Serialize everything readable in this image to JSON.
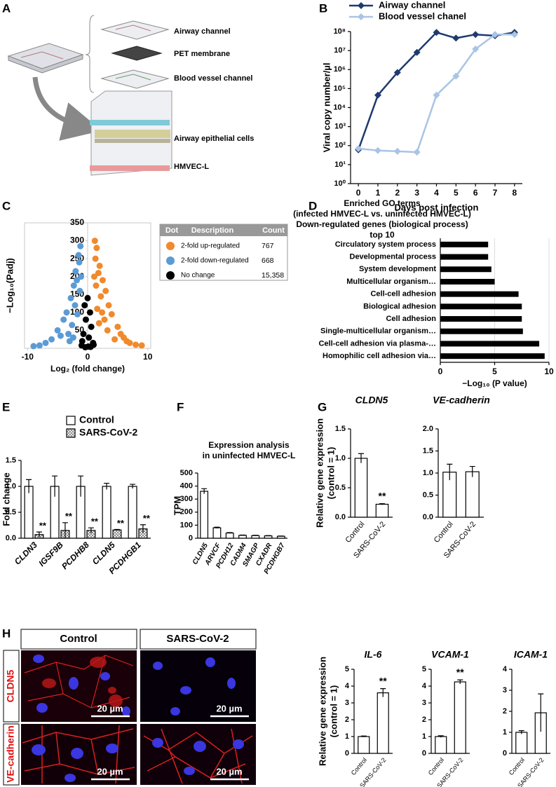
{
  "panel_labels": [
    "A",
    "B",
    "C",
    "D",
    "E",
    "F",
    "G",
    "H"
  ],
  "diagram": {
    "labels": [
      "Airway channel",
      "PET membrane",
      "Blood vessel channel",
      "Airway epithelial cells",
      "HMVEC-L"
    ]
  },
  "chart_data": [
    {
      "type": "line",
      "x": [
        0,
        1,
        2,
        3,
        4,
        5,
        6,
        7,
        8
      ],
      "series": [
        {
          "name": "Airway channel",
          "color": "#1f3a6e",
          "values": [
            60,
            45000,
            700000,
            8000000,
            90000000,
            45000000,
            70000000,
            60000000,
            90000000
          ]
        },
        {
          "name": "Blood vessel chanel",
          "color": "#a9c4e4",
          "values": [
            70,
            55,
            50,
            45,
            45000,
            450000,
            12000000,
            70000000,
            70000000
          ]
        }
      ],
      "xlim": [
        -0.4,
        8.4
      ],
      "xticks": [
        0,
        1,
        2,
        3,
        4,
        5,
        6,
        7,
        8
      ],
      "ylim": [
        1,
        100000000
      ],
      "log_y": true,
      "yticks": [
        {
          "value": 1,
          "label": "10⁰"
        },
        {
          "value": 10,
          "label": "10¹"
        },
        {
          "value": 100,
          "label": "10²"
        },
        {
          "value": 1000,
          "label": "10³"
        },
        {
          "value": 10000,
          "label": "10⁴"
        },
        {
          "value": 100000,
          "label": "10⁵"
        },
        {
          "value": 1000000,
          "label": "10⁶"
        },
        {
          "value": 10000000,
          "label": "10⁷"
        },
        {
          "value": 100000000,
          "label": "10⁸"
        }
      ],
      "xlabel": "Days post infection",
      "ylabel": "Viral copy number/µl"
    },
    {
      "type": "scatter",
      "series": [
        {
          "name": "2-fold up-regulated",
          "color": "#f08a2c",
          "x": [
            1.2,
            1.5,
            1.3,
            2,
            1.8,
            2.5,
            1.4,
            3,
            2.2,
            3.5,
            1.6,
            4,
            2.8,
            5,
            3.3,
            6,
            4.5,
            7,
            8,
            9,
            1.1,
            2.4,
            1.9,
            5.5,
            6.5
          ],
          "values": [
            300,
            280,
            250,
            230,
            210,
            190,
            175,
            160,
            145,
            120,
            110,
            95,
            80,
            60,
            50,
            30,
            25,
            15,
            10,
            8,
            200,
            100,
            70,
            40,
            20
          ]
        },
        {
          "name": "2-fold down-regulated",
          "color": "#5b9bd5",
          "x": [
            -1.2,
            -1.5,
            -1.4,
            -2,
            -1.8,
            -2.3,
            -1.3,
            -2.8,
            -2.1,
            -3.5,
            -1.7,
            -4,
            -2.6,
            -5,
            -3.2,
            -6,
            -7,
            -8,
            -9,
            -2.4,
            -4.5,
            -1.1,
            -3
          ],
          "values": [
            285,
            260,
            240,
            215,
            190,
            175,
            160,
            140,
            120,
            100,
            95,
            80,
            65,
            50,
            40,
            25,
            15,
            8,
            6,
            30,
            35,
            200,
            20
          ]
        },
        {
          "name": "No change",
          "color": "#000000",
          "x": [
            0,
            -0.5,
            0.4,
            -0.3,
            0.6,
            -0.7,
            0.2,
            -0.9,
            0.9,
            -1,
            1,
            0.1,
            -0.4,
            0.5
          ],
          "values": [
            140,
            120,
            100,
            80,
            60,
            40,
            30,
            20,
            15,
            8,
            10,
            5,
            3,
            4
          ]
        }
      ],
      "xlim": [
        -10.5,
        10.5
      ],
      "xticks": [
        -10,
        0,
        10
      ],
      "ylim": [
        0,
        350
      ],
      "yticks": [
        50,
        100,
        150,
        200,
        250,
        300,
        350
      ],
      "xlabel": "Log₂ (fold change)",
      "ylabel": "−Log₁₀(Padj)",
      "table": {
        "headers": [
          "Dot",
          "Description",
          "Count"
        ],
        "counts": [
          "767",
          "668",
          "15,358"
        ]
      }
    },
    {
      "type": "barh",
      "title": [
        "Enriched GO terms",
        "(infected HMVEC-L vs. uninfected HMVEC-L)",
        "Down-regulated genes (biological process)",
        "top 10"
      ],
      "categories": [
        "Circulatory system process",
        "Developmental process",
        "System development",
        "Multicellular organism…",
        "Cell-cell adhesion",
        "Biological adhesion",
        "Cell adhesion",
        "Single-multicellular organism…",
        "Cell-cell adhesion via plasma-…",
        "Homophilic cell adhesion via…"
      ],
      "values": [
        4.4,
        4.4,
        4.7,
        5.0,
        7.2,
        7.5,
        7.5,
        7.6,
        9.1,
        9.6
      ],
      "color": "#000000",
      "xlim": [
        0,
        10
      ],
      "xticks": [
        0,
        5,
        10
      ],
      "grid": true,
      "xlabel": "−Log₁₀ (P value)"
    },
    {
      "type": "grouped_bar",
      "categories": [
        "CLDN3",
        "IGSF9B",
        "PCDHB8",
        "CLDN5",
        "PCDHGB1"
      ],
      "series": [
        {
          "name": "Control",
          "color": "#ffffff",
          "values": [
            1.0,
            1.0,
            1.0,
            1.0,
            1.0
          ],
          "errors": [
            0.13,
            0.2,
            0.2,
            0.06,
            0.04
          ]
        },
        {
          "name": "SARS-CoV-2",
          "color": "#ffffff",
          "hatched": true,
          "values": [
            0.07,
            0.15,
            0.15,
            0.16,
            0.18
          ],
          "errors": [
            0.05,
            0.15,
            0.05,
            0.01,
            0.08
          ],
          "annotations": [
            "**",
            "**",
            "**",
            "**",
            "**"
          ]
        }
      ],
      "ylim": [
        0,
        1.5
      ],
      "yticks": [
        {
          "value": 0,
          "label": "0.0"
        },
        {
          "value": 0.5,
          "label": "0.5"
        },
        {
          "value": 1,
          "label": "1.0"
        },
        {
          "value": 1.5,
          "label": "1.5"
        }
      ],
      "ylabel": "Fold change"
    },
    {
      "type": "bar",
      "title": [
        "Expression analysis",
        "in uninfected HMVEC-L"
      ],
      "categories": [
        "CLDN5",
        "ARVCF",
        "PCDH12",
        "CADM4",
        "SMAGP",
        "CXADR",
        "PCDHGB7"
      ],
      "values": [
        360,
        80,
        40,
        22,
        20,
        18,
        15
      ],
      "errors": [
        20,
        5,
        3,
        2,
        2,
        2,
        2
      ],
      "color": "#ffffff",
      "ylim": [
        0,
        500
      ],
      "yticks": [
        0,
        100,
        200,
        300,
        400,
        500
      ],
      "ylabel": "TPM"
    },
    {
      "type": "bar",
      "title": "CLDN5",
      "categories": [
        "Control",
        "SARS-CoV-2"
      ],
      "values": [
        1.0,
        0.22
      ],
      "errors": [
        0.08,
        0.01
      ],
      "color": "#ffffff",
      "significance": "**",
      "ylim": [
        0,
        1.5
      ],
      "yticks": [
        {
          "value": 0,
          "label": "0.0"
        },
        {
          "value": 0.5,
          "label": "0.5"
        },
        {
          "value": 1,
          "label": "1.0"
        },
        {
          "value": 1.5,
          "label": "1.5"
        }
      ],
      "ylabel": [
        "Relative gene expression",
        "(control = 1)"
      ]
    },
    {
      "type": "bar",
      "title": "VE-cadherin",
      "categories": [
        "Control",
        "SARS-CoV-2"
      ],
      "values": [
        1.02,
        1.03
      ],
      "errors": [
        0.18,
        0.12
      ],
      "color": "#ffffff",
      "ylim": [
        0,
        2
      ],
      "yticks": [
        {
          "value": 0,
          "label": "0.0"
        },
        {
          "value": 0.5,
          "label": "0.5"
        },
        {
          "value": 1,
          "label": "1.0"
        },
        {
          "value": 1.5,
          "label": "1.5"
        },
        {
          "value": 2,
          "label": "2.0"
        }
      ]
    },
    {
      "type": "bar",
      "title": "IL-6",
      "categories": [
        "Control",
        "SARS-CoV-2"
      ],
      "values": [
        1.0,
        3.6
      ],
      "errors": [
        0.03,
        0.25
      ],
      "color": "#ffffff",
      "significance": "**",
      "ylim": [
        0,
        5
      ],
      "yticks": [
        0,
        1,
        2,
        3,
        4,
        5
      ],
      "ylabel": [
        "Relative gene expression",
        "(control = 1)"
      ]
    },
    {
      "type": "bar",
      "title": "VCAM-1",
      "categories": [
        "Control",
        "SARS-CoV-2"
      ],
      "values": [
        1.0,
        4.25
      ],
      "errors": [
        0.05,
        0.12
      ],
      "color": "#ffffff",
      "significance": "**",
      "ylim": [
        0,
        5
      ],
      "yticks": [
        0,
        1,
        2,
        3,
        4,
        5
      ]
    },
    {
      "type": "bar",
      "title": "ICAM-1",
      "categories": [
        "Control",
        "SARS-CoV-2"
      ],
      "values": [
        1.0,
        1.93
      ],
      "errors": [
        0.08,
        0.9
      ],
      "color": "#ffffff",
      "ylim": [
        0,
        4
      ],
      "yticks": [
        0,
        1,
        2,
        3,
        4
      ]
    }
  ],
  "images": {
    "columns": [
      "Control",
      "SARS-CoV-2"
    ],
    "rows": [
      "CLDN5",
      "VE-cadherin"
    ],
    "scale_bars": [
      "20 µm",
      "20 µm",
      "20 µm",
      "20 µm"
    ]
  }
}
